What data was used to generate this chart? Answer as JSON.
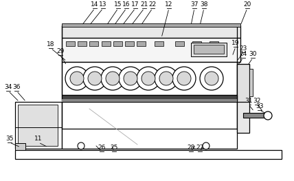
{
  "bg_color": "#ffffff",
  "lc": "#000000",
  "label_lines": [
    [
      "14",
      138,
      12,
      119,
      37
    ],
    [
      "13",
      150,
      12,
      130,
      37
    ],
    [
      "15",
      172,
      12,
      155,
      37
    ],
    [
      "16",
      184,
      12,
      166,
      37
    ],
    [
      "17",
      197,
      12,
      178,
      37
    ],
    [
      "21",
      210,
      12,
      191,
      37
    ],
    [
      "22",
      222,
      12,
      205,
      37
    ],
    [
      "12",
      246,
      12,
      235,
      55
    ],
    [
      "37",
      283,
      12,
      278,
      37
    ],
    [
      "38",
      297,
      12,
      291,
      37
    ],
    [
      "20",
      360,
      12,
      350,
      37
    ],
    [
      "18",
      74,
      70,
      97,
      89
    ],
    [
      "29",
      88,
      80,
      97,
      95
    ],
    [
      "34",
      12,
      132,
      28,
      148
    ],
    [
      "36",
      24,
      132,
      38,
      148
    ],
    [
      "19",
      343,
      68,
      338,
      82
    ],
    [
      "23",
      354,
      76,
      345,
      89
    ],
    [
      "24",
      354,
      84,
      345,
      96
    ],
    [
      "30",
      368,
      84,
      360,
      96
    ],
    [
      "31",
      362,
      152,
      370,
      162
    ],
    [
      "32",
      374,
      152,
      383,
      162
    ],
    [
      "33",
      378,
      160,
      393,
      168
    ],
    [
      "35",
      14,
      207,
      30,
      214
    ],
    [
      "11",
      56,
      207,
      70,
      214
    ],
    [
      "26",
      148,
      220,
      138,
      210
    ],
    [
      "25",
      166,
      220,
      162,
      210
    ],
    [
      "28",
      278,
      220,
      285,
      210
    ],
    [
      "27",
      291,
      220,
      298,
      210
    ]
  ]
}
